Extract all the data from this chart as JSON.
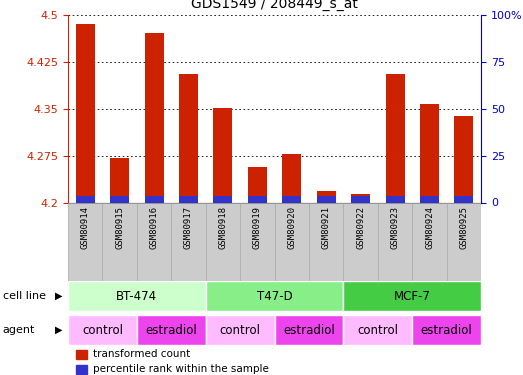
{
  "title": "GDS1549 / 208449_s_at",
  "samples": [
    "GSM80914",
    "GSM80915",
    "GSM80916",
    "GSM80917",
    "GSM80918",
    "GSM80919",
    "GSM80920",
    "GSM80921",
    "GSM80922",
    "GSM80923",
    "GSM80924",
    "GSM80925"
  ],
  "red_values": [
    4.485,
    4.272,
    4.472,
    4.405,
    4.352,
    4.257,
    4.278,
    4.218,
    4.213,
    4.405,
    4.358,
    4.338
  ],
  "blue_values": [
    0.01,
    0.01,
    0.01,
    0.01,
    0.01,
    0.01,
    0.01,
    0.01,
    0.01,
    0.01,
    0.01,
    0.01
  ],
  "base": 4.2,
  "ylim_left": [
    4.2,
    4.5
  ],
  "ylim_right": [
    0,
    100
  ],
  "yticks_left": [
    4.2,
    4.275,
    4.35,
    4.425,
    4.5
  ],
  "yticks_right": [
    0,
    25,
    50,
    75,
    100
  ],
  "ytick_labels_left": [
    "4.2",
    "4.275",
    "4.35",
    "4.425",
    "4.5"
  ],
  "ytick_labels_right": [
    "0",
    "25",
    "50",
    "75",
    "100%"
  ],
  "bar_color_red": "#cc2200",
  "bar_color_blue": "#3333cc",
  "bar_width": 0.55,
  "cell_line_groups": [
    {
      "label": "BT-474",
      "start": 0,
      "end": 3,
      "color": "#ccffcc"
    },
    {
      "label": "T47-D",
      "start": 4,
      "end": 7,
      "color": "#88ee88"
    },
    {
      "label": "MCF-7",
      "start": 8,
      "end": 11,
      "color": "#44cc44"
    }
  ],
  "agent_groups": [
    {
      "label": "control",
      "start": 0,
      "end": 1,
      "color": "#ffbbff"
    },
    {
      "label": "estradiol",
      "start": 2,
      "end": 3,
      "color": "#ee44ee"
    },
    {
      "label": "control",
      "start": 4,
      "end": 5,
      "color": "#ffbbff"
    },
    {
      "label": "estradiol",
      "start": 6,
      "end": 7,
      "color": "#ee44ee"
    },
    {
      "label": "control",
      "start": 8,
      "end": 9,
      "color": "#ffbbff"
    },
    {
      "label": "estradiol",
      "start": 10,
      "end": 11,
      "color": "#ee44ee"
    }
  ],
  "legend_items": [
    {
      "label": "transformed count",
      "color": "#cc2200"
    },
    {
      "label": "percentile rank within the sample",
      "color": "#3333cc"
    }
  ],
  "tick_color_left": "#cc2200",
  "tick_color_right": "#0000cc",
  "bg_color": "#ffffff",
  "sample_bg_color": "#cccccc",
  "sample_border_color": "#aaaaaa"
}
